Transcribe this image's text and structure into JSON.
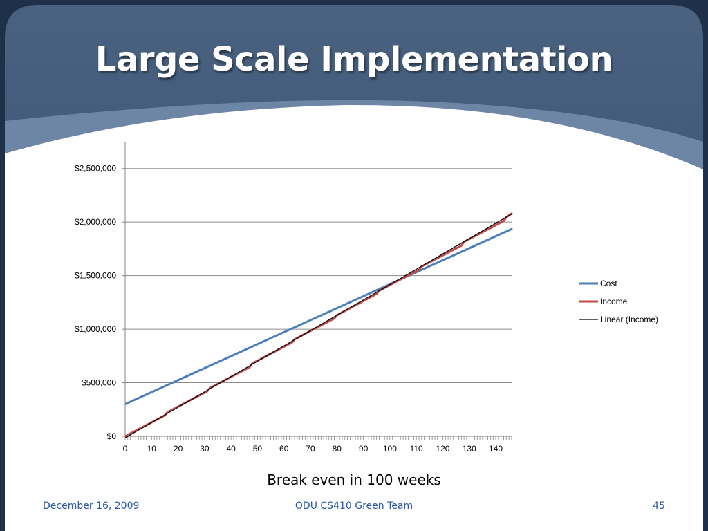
{
  "slide": {
    "title": "Large Scale Implementation",
    "caption": "Break even in 100 weeks",
    "footer": {
      "date": "December 16, 2009",
      "center": "ODU CS410 Green Team",
      "page": "45"
    }
  },
  "chart_data": {
    "type": "line",
    "title": "",
    "xlabel": "",
    "ylabel": "",
    "xlim": [
      0,
      146
    ],
    "ylim": [
      0,
      2750000
    ],
    "x_ticks": [
      0,
      10,
      20,
      30,
      40,
      50,
      60,
      70,
      80,
      90,
      100,
      110,
      120,
      130,
      140
    ],
    "y_ticks": [
      0,
      500000,
      1000000,
      1500000,
      2000000,
      2500000
    ],
    "y_tick_labels": [
      "$0",
      "$500,000",
      "$1,000,000",
      "$1,500,000",
      "$2,000,000",
      "$2,500,000"
    ],
    "grid": true,
    "legend_position": "right",
    "series": [
      {
        "name": "Cost",
        "color": "#4a7ebb",
        "x": [
          0,
          146
        ],
        "y": [
          300000,
          1935000
        ]
      },
      {
        "name": "Income",
        "color": "#be4b48",
        "x": [
          0,
          15,
          16,
          31,
          32,
          47,
          48,
          63,
          64,
          79,
          80,
          95,
          96,
          111,
          112,
          127,
          128,
          143,
          144,
          146
        ],
        "y": [
          0,
          195000,
          225000,
          420000,
          450000,
          645000,
          680000,
          875000,
          905000,
          1100000,
          1130000,
          1330000,
          1360000,
          1555000,
          1585000,
          1780000,
          1815000,
          2010000,
          2045000,
          2080000
        ]
      },
      {
        "name": "Linear (Income)",
        "color": "#000000",
        "x": [
          0,
          146
        ],
        "y": [
          -15000,
          2075000
        ]
      }
    ]
  }
}
